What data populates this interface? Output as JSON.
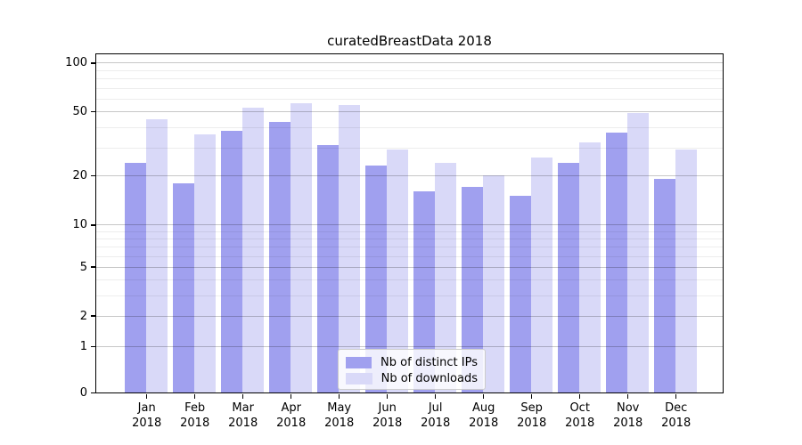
{
  "chart_data": {
    "type": "bar",
    "title": "curatedBreastData 2018",
    "categories": [
      "Jan",
      "Feb",
      "Mar",
      "Apr",
      "May",
      "Jun",
      "Jul",
      "Aug",
      "Sep",
      "Oct",
      "Nov",
      "Dec"
    ],
    "year": "2018",
    "series": [
      {
        "name": "Nb of distinct IPs",
        "color": "#a0a0ef",
        "values": [
          24,
          18,
          38,
          43,
          31,
          23,
          16,
          17,
          15,
          24,
          37,
          19
        ]
      },
      {
        "name": "Nb of downloads",
        "color": "#d9d9f8",
        "values": [
          45,
          36,
          53,
          56,
          55,
          29,
          24,
          20,
          26,
          32,
          49,
          29
        ]
      }
    ],
    "yscale": "log-like (log(1+x))",
    "ylim": [
      0,
      112
    ],
    "y_ticks": [
      0,
      1,
      2,
      5,
      10,
      20,
      50,
      100
    ],
    "y_minor_gridlines": [
      3,
      4,
      6,
      7,
      8,
      9,
      30,
      40,
      60,
      70,
      80,
      90
    ],
    "grid": true,
    "legend_position": "lower center",
    "colors": {
      "axis": "#000000",
      "major_grid": "#c9c9c9",
      "minor_grid": "#ededed"
    }
  }
}
